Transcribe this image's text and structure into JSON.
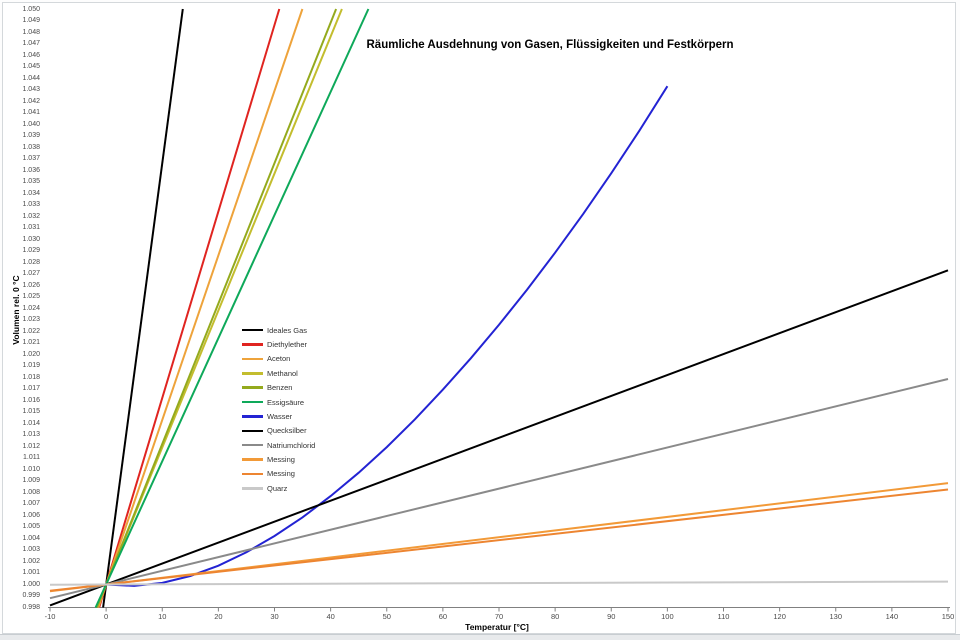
{
  "chart_data": {
    "type": "line",
    "title": "Räumliche Ausdehnung von Gasen, Flüssigkeiten und Festkörpern",
    "xlabel": "Temperatur [°C]",
    "ylabel": "Volumen rel. 0 °C",
    "xlim": [
      -10,
      150
    ],
    "ylim": [
      0.998,
      1.05
    ],
    "grid": false,
    "legend_position": "center-left",
    "x_ticks": [
      "-10",
      "0",
      "10",
      "20",
      "30",
      "40",
      "50",
      "60",
      "70",
      "80",
      "90",
      "100",
      "110",
      "120",
      "130",
      "140",
      "150"
    ],
    "y_ticks": [
      "1.050",
      "1.049",
      "1.048",
      "1.047",
      "1.046",
      "1.045",
      "1.044",
      "1.043",
      "1.042",
      "1.041",
      "1.040",
      "1.039",
      "1.038",
      "1.037",
      "1.036",
      "1.035",
      "1.034",
      "1.033",
      "1.032",
      "1.031",
      "1.030",
      "1.029",
      "1.028",
      "1.027",
      "1.026",
      "1.025",
      "1.024",
      "1.023",
      "1.022",
      "1.021",
      "1.020",
      "1.019",
      "1.018",
      "1.017",
      "1.016",
      "1.015",
      "1.014",
      "1.013",
      "1.012",
      "1.011",
      "1.010",
      "1.009",
      "1.008",
      "1.007",
      "1.006",
      "1.005",
      "1.004",
      "1.003",
      "1.002",
      "1.001",
      "1.000",
      "0.999",
      "0.998"
    ],
    "series": [
      {
        "name": "Ideales Gas",
        "color": "#000000",
        "points": [
          [
            -0.546,
            0.998
          ],
          [
            13.658,
            1.05
          ]
        ]
      },
      {
        "name": "Diethylether",
        "color": "#e02420",
        "points": [
          [
            -1.235,
            0.998
          ],
          [
            30.864,
            1.05
          ]
        ]
      },
      {
        "name": "Aceton",
        "color": "#eea33b",
        "points": [
          [
            -1.399,
            0.998
          ],
          [
            34.965,
            1.05
          ]
        ]
      },
      {
        "name": "Methanol",
        "color": "#c3bd2e",
        "points": [
          [
            -1.681,
            0.998
          ],
          [
            42.017,
            1.05
          ]
        ]
      },
      {
        "name": "Benzen",
        "color": "#94aa1d",
        "points": [
          [
            -1.639,
            0.998
          ],
          [
            40.984,
            1.05
          ]
        ]
      },
      {
        "name": "Essigsäure",
        "color": "#0ea95a",
        "points": [
          [
            -1.869,
            0.998
          ],
          [
            46.729,
            1.05
          ]
        ]
      },
      {
        "name": "Wasser",
        "color": "#2323d3",
        "points": [
          [
            0,
            1.0
          ],
          [
            5,
            0.99988
          ],
          [
            10,
            1.00014
          ],
          [
            15,
            1.00074
          ],
          [
            20,
            1.00163
          ],
          [
            25,
            1.0028
          ],
          [
            30,
            1.00421
          ],
          [
            35,
            1.00584
          ],
          [
            40,
            1.00768
          ],
          [
            45,
            1.00971
          ],
          [
            50,
            1.01194
          ],
          [
            55,
            1.01434
          ],
          [
            60,
            1.01693
          ],
          [
            65,
            1.01966
          ],
          [
            70,
            1.02256
          ],
          [
            75,
            1.02562
          ],
          [
            80,
            1.02883
          ],
          [
            85,
            1.0322
          ],
          [
            90,
            1.03573
          ],
          [
            95,
            1.03942
          ],
          [
            100,
            1.04329
          ]
        ]
      },
      {
        "name": "Quecksilber",
        "color": "#000000",
        "points": [
          [
            -10,
            0.99818
          ],
          [
            150,
            1.0273
          ]
        ]
      },
      {
        "name": "Natriumchlorid",
        "color": "#8a8a8a",
        "points": [
          [
            -10,
            0.99881
          ],
          [
            150,
            1.01785
          ]
        ]
      },
      {
        "name": "Messing",
        "color": "#f29a38",
        "points": [
          [
            -10,
            0.99941
          ],
          [
            150,
            1.00881
          ]
        ]
      },
      {
        "name": "Messing",
        "color": "#ed8531",
        "points": [
          [
            -10,
            0.99945
          ],
          [
            150,
            1.00825
          ]
        ]
      },
      {
        "name": "Quarz",
        "color": "#c9c9c9",
        "points": [
          [
            -10,
            0.99998
          ],
          [
            150,
            1.00025
          ]
        ]
      }
    ],
    "axis_color": "#808080"
  }
}
